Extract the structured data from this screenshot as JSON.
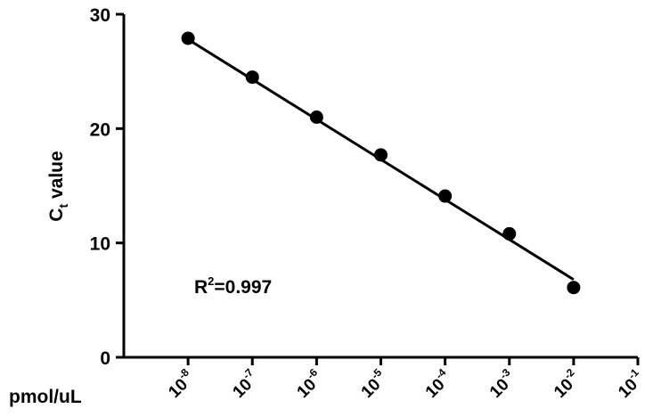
{
  "chart_data": {
    "type": "scatter",
    "title": "",
    "xlabel": "pmol/uL",
    "ylabel_main": "C",
    "ylabel_sub": "t",
    "ylabel_rest": " value",
    "x_scale": "log",
    "x_ticks": [
      {
        "value": 1e-08,
        "base": "10",
        "exp": "-8"
      },
      {
        "value": 1e-07,
        "base": "10",
        "exp": "-7"
      },
      {
        "value": 1e-06,
        "base": "10",
        "exp": "-6"
      },
      {
        "value": 1e-05,
        "base": "10",
        "exp": "-5"
      },
      {
        "value": 0.0001,
        "base": "10",
        "exp": "-4"
      },
      {
        "value": 0.001,
        "base": "10",
        "exp": "-3"
      },
      {
        "value": 0.01,
        "base": "10",
        "exp": "-2"
      },
      {
        "value": 0.1,
        "base": "10",
        "exp": "-1"
      }
    ],
    "xlim": [
      1e-09,
      0.1
    ],
    "ylim": [
      0,
      30
    ],
    "y_ticks": [
      0,
      10,
      20,
      30
    ],
    "series": [
      {
        "points": [
          {
            "x": 1e-08,
            "y": 27.9
          },
          {
            "x": 1e-07,
            "y": 24.5
          },
          {
            "x": 1e-06,
            "y": 21.0
          },
          {
            "x": 1e-05,
            "y": 17.7
          },
          {
            "x": 0.0001,
            "y": 14.1
          },
          {
            "x": 0.001,
            "y": 10.8
          },
          {
            "x": 0.01,
            "y": 6.1
          }
        ],
        "fit": {
          "type": "linear-log10",
          "x_start": 1e-08,
          "y_start": 27.8,
          "x_end": 0.01,
          "y_end": 6.8
        }
      }
    ],
    "annotation": {
      "prefix": "R",
      "sup": "2",
      "suffix": "=0.997"
    },
    "grid": false,
    "legend": "none",
    "colors": {
      "marker": "#000000",
      "line": "#000000",
      "axis": "#000000"
    }
  }
}
